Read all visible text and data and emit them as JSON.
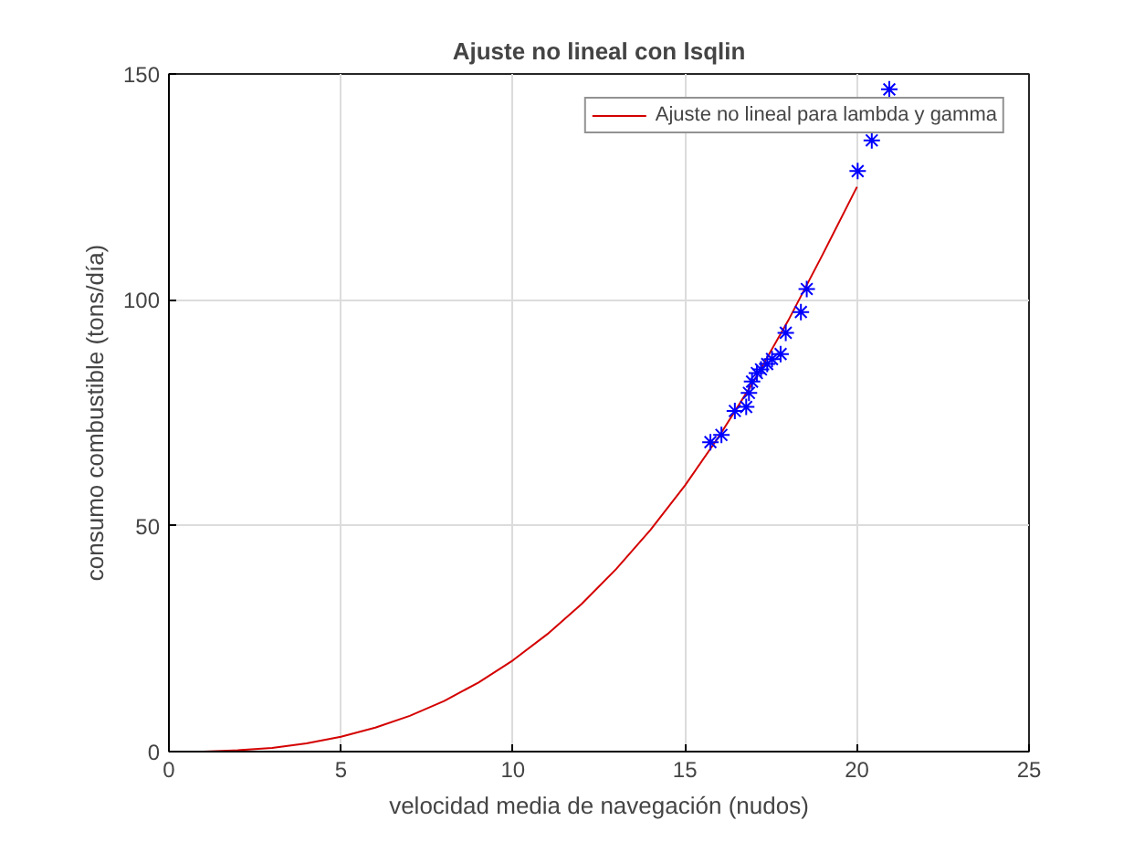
{
  "chart_data": {
    "type": "line",
    "title": "Ajuste no lineal con lsqlin",
    "xlabel": "velocidad media de navegación (nudos)",
    "ylabel": "consumo combustible (tons/día)",
    "xlim": [
      0,
      25
    ],
    "ylim": [
      0,
      150
    ],
    "xticks": [
      0,
      5,
      10,
      15,
      20,
      25
    ],
    "yticks": [
      0,
      50,
      100,
      150
    ],
    "grid": true,
    "legend": "top right",
    "series": [
      {
        "name": "Ajuste no lineal para lambda y gamma",
        "color": "#d40000",
        "marker": "none",
        "line_style": "solid",
        "x": [
          0,
          1,
          2,
          3,
          4,
          5,
          6,
          7,
          8,
          9,
          10,
          11,
          12,
          13,
          14,
          15,
          16,
          17,
          18,
          19,
          20
        ],
        "values": [
          0,
          0,
          0.3,
          0.8,
          1.8,
          3.3,
          5.3,
          7.9,
          11.2,
          15.3,
          20.2,
          26,
          32.7,
          40.4,
          49.1,
          58.9,
          69.9,
          82,
          95.4,
          110,
          125
        ]
      },
      {
        "type": "scatter",
        "color": "#0000ff",
        "marker": "cross",
        "x": [
          15.74,
          16.06,
          16.45,
          16.78,
          16.86,
          16.95,
          17.09,
          17.21,
          17.39,
          17.53,
          17.78,
          17.93,
          18.37,
          18.54,
          20.02,
          20.43,
          20.94
        ],
        "values": [
          68.5,
          70.1,
          75.4,
          76.3,
          79.4,
          81.9,
          83.8,
          84.6,
          85.8,
          86.9,
          88,
          92.7,
          97.3,
          102.4,
          128.5,
          135.3,
          146.6
        ]
      }
    ]
  }
}
